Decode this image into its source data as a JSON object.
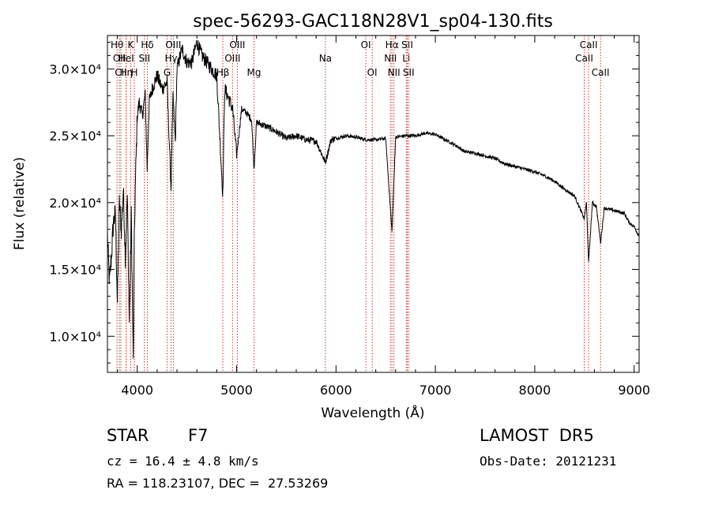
{
  "chart_data": {
    "type": "line",
    "title": "spec-56293-GAC118N28V1_sp04-130.fits",
    "xlabel": "Wavelength (Å)",
    "ylabel": "Flux (relative)",
    "xlim": [
      3700,
      9050
    ],
    "ylim": [
      7300,
      32500
    ],
    "x_ticks": [
      4000,
      5000,
      6000,
      7000,
      8000,
      9000
    ],
    "x_tick_labels": [
      "4000",
      "5000",
      "6000",
      "7000",
      "8000",
      "9000"
    ],
    "y_ticks": [
      10000,
      15000,
      20000,
      25000,
      30000
    ],
    "y_tick_labels": [
      "1.0×10⁴",
      "1.5×10⁴",
      "2.0×10⁴",
      "2.5×10⁴",
      "3.0×10⁴"
    ],
    "grid": false,
    "series": [
      {
        "x": [
          3700,
          3720,
          3740,
          3760,
          3780,
          3800,
          3820,
          3840,
          3860,
          3880,
          3900,
          3920,
          3940,
          3960,
          3970,
          3980,
          4000,
          4020,
          4050,
          4080,
          4100,
          4120,
          4150,
          4200,
          4250,
          4300,
          4340,
          4360,
          4383,
          4400,
          4450,
          4500,
          4550,
          4600,
          4650,
          4700,
          4750,
          4800,
          4861,
          4880,
          4920,
          4960,
          5000,
          5050,
          5100,
          5150,
          5175,
          5200,
          5300,
          5400,
          5500,
          5600,
          5700,
          5800,
          5893,
          5950,
          6000,
          6100,
          6200,
          6300,
          6400,
          6500,
          6563,
          6600,
          6700,
          6800,
          6900,
          7000,
          7100,
          7200,
          7300,
          7400,
          7500,
          7600,
          7700,
          7800,
          7900,
          8000,
          8100,
          8200,
          8300,
          8400,
          8498,
          8520,
          8542,
          8580,
          8620,
          8662,
          8700,
          8800,
          8900,
          8950,
          9000,
          9050
        ],
        "y": [
          17500,
          14000,
          16000,
          18500,
          19200,
          12500,
          20000,
          18000,
          21000,
          16000,
          20500,
          11000,
          19000,
          8000,
          17000,
          21000,
          26500,
          27500,
          26500,
          28000,
          22500,
          27500,
          28500,
          29500,
          28500,
          29000,
          21000,
          28000,
          24500,
          30000,
          31500,
          30500,
          30500,
          32000,
          31000,
          30500,
          30000,
          29500,
          20500,
          28500,
          27800,
          27000,
          23500,
          27000,
          26700,
          26200,
          22500,
          26000,
          25700,
          25300,
          24800,
          25000,
          24700,
          24600,
          23000,
          24700,
          24800,
          25000,
          24900,
          24700,
          24700,
          24800,
          17800,
          24900,
          25000,
          25000,
          25200,
          25100,
          24700,
          24300,
          23800,
          23700,
          23500,
          23300,
          22900,
          22700,
          22500,
          22300,
          22000,
          21600,
          21000,
          20500,
          18800,
          20000,
          15500,
          20000,
          19700,
          17000,
          19600,
          19400,
          19200,
          18500,
          18200,
          17500
        ]
      }
    ],
    "line_markers": [
      {
        "wavelength": 3797,
        "label": "Hθ",
        "row": 0
      },
      {
        "wavelength": 3820,
        "label": "OII",
        "row": 1
      },
      {
        "wavelength": 3835,
        "label": "CII",
        "row": 2
      },
      {
        "wavelength": 3889,
        "label": "Hη",
        "row": 2
      },
      {
        "wavelength": 3934,
        "label": "K",
        "row": 0
      },
      {
        "wavelength": 3888,
        "label": "HeI",
        "row": 1
      },
      {
        "wavelength": 3970,
        "label": "H",
        "row": 2
      },
      {
        "wavelength": 4102,
        "label": "Hδ",
        "row": 0
      },
      {
        "wavelength": 4072,
        "label": "SII",
        "row": 1
      },
      {
        "wavelength": 4300,
        "label": "G",
        "row": 2
      },
      {
        "wavelength": 4340,
        "label": "Hγ",
        "row": 1
      },
      {
        "wavelength": 4363,
        "label": "OIII",
        "row": 0
      },
      {
        "wavelength": 4861,
        "label": "Hβ",
        "row": 2
      },
      {
        "wavelength": 4959,
        "label": "OIII",
        "row": 1
      },
      {
        "wavelength": 5007,
        "label": "OIII",
        "row": 0
      },
      {
        "wavelength": 5175,
        "label": "Mg",
        "row": 2
      },
      {
        "wavelength": 5893,
        "label": "Na",
        "row": 1
      },
      {
        "wavelength": 6300,
        "label": "OI",
        "row": 0
      },
      {
        "wavelength": 6364,
        "label": "OI",
        "row": 2
      },
      {
        "wavelength": 6548,
        "label": "NII",
        "row": 1
      },
      {
        "wavelength": 6563,
        "label": "Hα",
        "row": 0
      },
      {
        "wavelength": 6583,
        "label": "NII",
        "row": 2
      },
      {
        "wavelength": 6707,
        "label": "Li",
        "row": 1
      },
      {
        "wavelength": 6717,
        "label": "SII",
        "row": 0
      },
      {
        "wavelength": 6731,
        "label": "SII",
        "row": 2
      },
      {
        "wavelength": 8498,
        "label": "CaII",
        "row": 1
      },
      {
        "wavelength": 8542,
        "label": "CaII",
        "row": 0
      },
      {
        "wavelength": 8662,
        "label": "CaII",
        "row": 2
      }
    ],
    "colors": {
      "spectrum": "#000000",
      "marker": "#c0392b",
      "axes": "#000000"
    }
  },
  "info": {
    "class_label": "STAR",
    "subclass": "F7",
    "survey": "LAMOST  DR5",
    "redshift_text": "cz = 16.4 ± 4.8 km/s",
    "obs_date_text": "Obs-Date: 20121231",
    "coords_text": "RA = 118.23107, DEC =  27.53269"
  }
}
